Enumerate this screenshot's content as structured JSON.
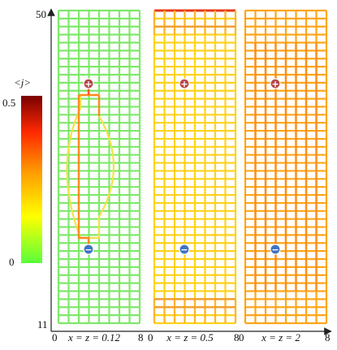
{
  "colorbar": {
    "title": "<j>",
    "max_label": "0.5",
    "min_label": "0",
    "min": 0,
    "max": 0.5,
    "stops": [
      "#59ff3a",
      "#ffff00",
      "#ff9900",
      "#ff2a00",
      "#7a0000"
    ]
  },
  "y_axis": {
    "top_label": "50",
    "bottom_label": "11"
  },
  "panels": [
    {
      "x0_label": "0",
      "x1_label": "8",
      "caption": "x = z = 0.12",
      "base_color": "#7ee86a"
    },
    {
      "x0_label": "0",
      "x1_label": "8",
      "caption": "x = z = 0.5",
      "base_color": "#ffd21a"
    },
    {
      "x0_label": "0",
      "x1_label": "8",
      "caption": "x = z = 2",
      "base_color": "#ffa51a"
    }
  ],
  "electrodes": {
    "plus_symbol": "+",
    "minus_symbol": "−",
    "plus_color": "#b54a4a",
    "minus_color": "#3f74c4"
  }
}
